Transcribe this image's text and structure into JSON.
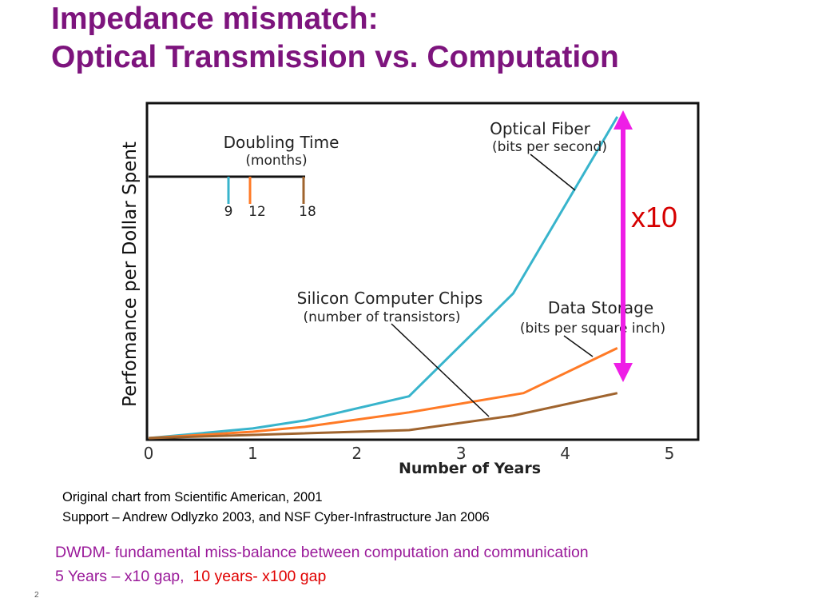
{
  "title": {
    "line1": "Impedance mismatch:",
    "line2": "Optical Transmission vs. Computation"
  },
  "chart_data": {
    "type": "line",
    "ylabel": "Perfomance per Dollar Spent",
    "xlabel": "Number of Years",
    "xlim": [
      0,
      5
    ],
    "x_ticks": [
      "0",
      "1",
      "2",
      "3",
      "4",
      "5"
    ],
    "ylim": [
      0,
      100
    ],
    "y_ticks_shown": false,
    "grid": false,
    "series": [
      {
        "name": "Optical Fiber",
        "subtitle": "(bits per second)",
        "color": "#38b4cc",
        "x": [
          0,
          1,
          1.5,
          2.5,
          3.5,
          4.5
        ],
        "values": [
          0,
          3,
          5.5,
          13,
          45,
          100
        ]
      },
      {
        "name": "Data Storage",
        "subtitle": "(bits per square inch)",
        "color": "#ff7a26",
        "x": [
          0,
          1,
          1.5,
          2.5,
          3.6,
          4.5
        ],
        "values": [
          0,
          2,
          3.5,
          8,
          14,
          28
        ]
      },
      {
        "name": "Silicon Computer Chips",
        "subtitle": "(number of transistors)",
        "color": "#a0642e",
        "x": [
          0,
          1,
          2.5,
          3.5,
          4.5
        ],
        "values": [
          0,
          1,
          2.5,
          7,
          14
        ]
      }
    ],
    "doubling_time": {
      "title": "Doubling Time",
      "subtitle": "(months)",
      "markers": [
        {
          "label": "9",
          "color": "#38b4cc"
        },
        {
          "label": "12",
          "color": "#ff7a26"
        },
        {
          "label": "18",
          "color": "#a0642e"
        }
      ]
    },
    "gap_annotation": {
      "label": "x10",
      "arrow_color": "#ee1ee6",
      "label_color": "#d60000"
    }
  },
  "credits": {
    "line1": "Original chart from Scientific American, 2001",
    "line2": "Support – Andrew Odlyzko 2003, and NSF Cyber-Infrastructure Jan 2006"
  },
  "conclusion": {
    "line1": "DWDM- fundamental miss-balance between computation and communication",
    "line2a": "5 Years – x10 gap,",
    "line2b": "10 years- x100 gap"
  },
  "slide_number": "2"
}
